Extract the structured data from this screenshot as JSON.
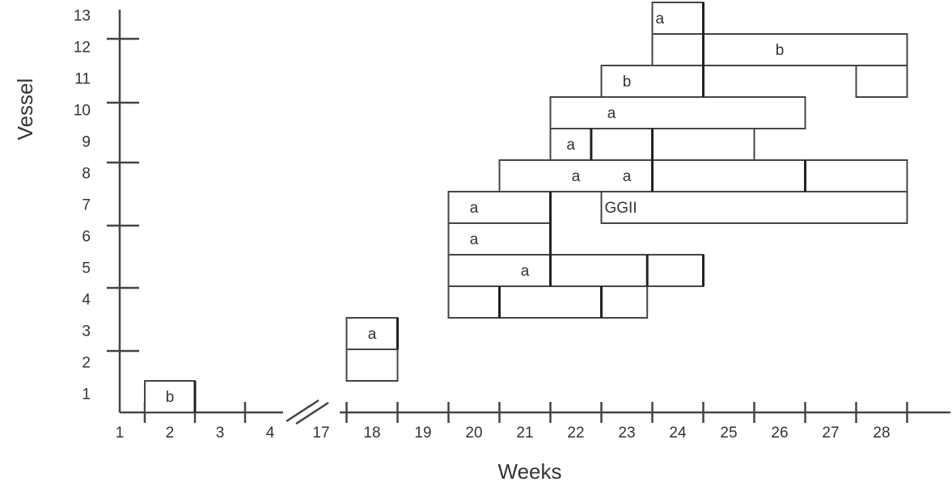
{
  "chart_data": {
    "type": "gantt",
    "xlabel": "Weeks",
    "ylabel": "Vessel",
    "x_ticks": [
      "1",
      "2",
      "3",
      "4",
      "17",
      "18",
      "19",
      "20",
      "21",
      "22",
      "23",
      "24",
      "25",
      "26",
      "27",
      "28"
    ],
    "y_ticks": [
      "1",
      "2",
      "3",
      "4",
      "5",
      "6",
      "7",
      "8",
      "9",
      "10",
      "11",
      "12",
      "13"
    ],
    "axis_break_between": [
      "4",
      "17"
    ],
    "rows": [
      {
        "vessel": "1",
        "segments": [
          {
            "start": 1.5,
            "end": 2.5,
            "label": "b"
          }
        ]
      },
      {
        "vessel": "2",
        "segments": [
          {
            "start": 17.5,
            "end": 18.5,
            "label": ""
          }
        ]
      },
      {
        "vessel": "3",
        "segments": [
          {
            "start": 17.5,
            "end": 18.5,
            "label": "a"
          }
        ]
      },
      {
        "vessel": "4",
        "segments": [
          {
            "start": 19.5,
            "end": 20.5,
            "label": ""
          },
          {
            "start": 20.5,
            "end": 22.5,
            "label": ""
          },
          {
            "start": 22.5,
            "end": 23.4,
            "label": ""
          }
        ]
      },
      {
        "vessel": "5",
        "segments": [
          {
            "start": 19.5,
            "end": 21.5,
            "label": "a"
          },
          {
            "start": 21.5,
            "end": 23.4,
            "label": ""
          },
          {
            "start": 23.4,
            "end": 24.5,
            "label": ""
          }
        ]
      },
      {
        "vessel": "6",
        "segments": [
          {
            "start": 19.5,
            "end": 21.5,
            "label": "a"
          }
        ]
      },
      {
        "vessel": "7",
        "segments": [
          {
            "start": 19.5,
            "end": 21.5,
            "label": "a"
          },
          {
            "start": 22.5,
            "end": 28.5,
            "label": "GGII"
          }
        ]
      },
      {
        "vessel": "8",
        "segments": [
          {
            "start": 20.5,
            "end": 23.5,
            "label": "a a"
          },
          {
            "start": 23.5,
            "end": 26.5,
            "label": ""
          },
          {
            "start": 26.5,
            "end": 28.5,
            "label": ""
          }
        ]
      },
      {
        "vessel": "9",
        "segments": [
          {
            "start": 21.5,
            "end": 22.3,
            "label": "a"
          },
          {
            "start": 22.3,
            "end": 23.5,
            "label": ""
          },
          {
            "start": 23.5,
            "end": 25.5,
            "label": ""
          }
        ]
      },
      {
        "vessel": "10",
        "segments": [
          {
            "start": 21.5,
            "end": 26.5,
            "label": "a"
          }
        ]
      },
      {
        "vessel": "11",
        "segments": [
          {
            "start": 22.5,
            "end": 24.5,
            "label": "b"
          },
          {
            "start": 27.5,
            "end": 28.5,
            "label": ""
          }
        ]
      },
      {
        "vessel": "12",
        "segments": [
          {
            "start": 23.5,
            "end": 24.5,
            "label": ""
          },
          {
            "start": 24.5,
            "end": 28.5,
            "label": "b"
          }
        ]
      },
      {
        "vessel": "13",
        "segments": [
          {
            "start": 23.5,
            "end": 24.5,
            "label": "a"
          }
        ]
      }
    ]
  }
}
